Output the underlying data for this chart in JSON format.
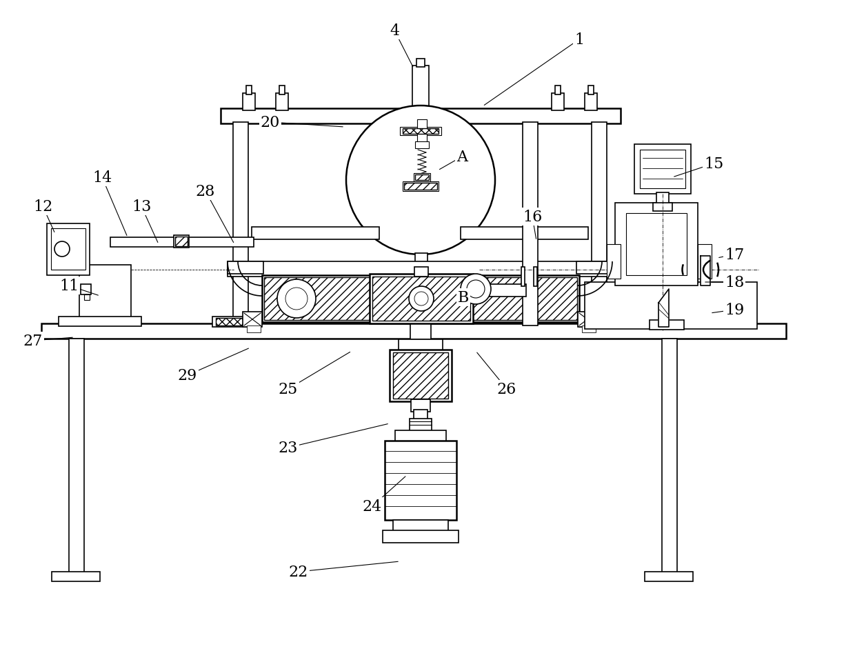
{
  "bg_color": "#ffffff",
  "line_color": "#000000",
  "labels_config": [
    [
      "1",
      840,
      58,
      700,
      155
    ],
    [
      "4",
      572,
      45,
      600,
      100
    ],
    [
      "11",
      100,
      415,
      145,
      430
    ],
    [
      "12",
      62,
      300,
      80,
      340
    ],
    [
      "13",
      205,
      300,
      230,
      355
    ],
    [
      "14",
      148,
      258,
      185,
      345
    ],
    [
      "15",
      1035,
      238,
      975,
      258
    ],
    [
      "16",
      772,
      315,
      778,
      350
    ],
    [
      "17",
      1065,
      370,
      1040,
      375
    ],
    [
      "18",
      1065,
      410,
      1020,
      410
    ],
    [
      "19",
      1065,
      450,
      1030,
      455
    ],
    [
      "20",
      392,
      178,
      500,
      185
    ],
    [
      "22",
      433,
      830,
      580,
      815
    ],
    [
      "23",
      418,
      650,
      565,
      615
    ],
    [
      "24",
      540,
      735,
      590,
      690
    ],
    [
      "25",
      418,
      565,
      510,
      510
    ],
    [
      "26",
      735,
      565,
      690,
      510
    ],
    [
      "27",
      48,
      495,
      108,
      490
    ],
    [
      "28",
      298,
      278,
      340,
      355
    ],
    [
      "29",
      272,
      545,
      363,
      505
    ],
    [
      "A",
      670,
      228,
      635,
      248
    ],
    [
      "B",
      672,
      432,
      672,
      435
    ]
  ]
}
